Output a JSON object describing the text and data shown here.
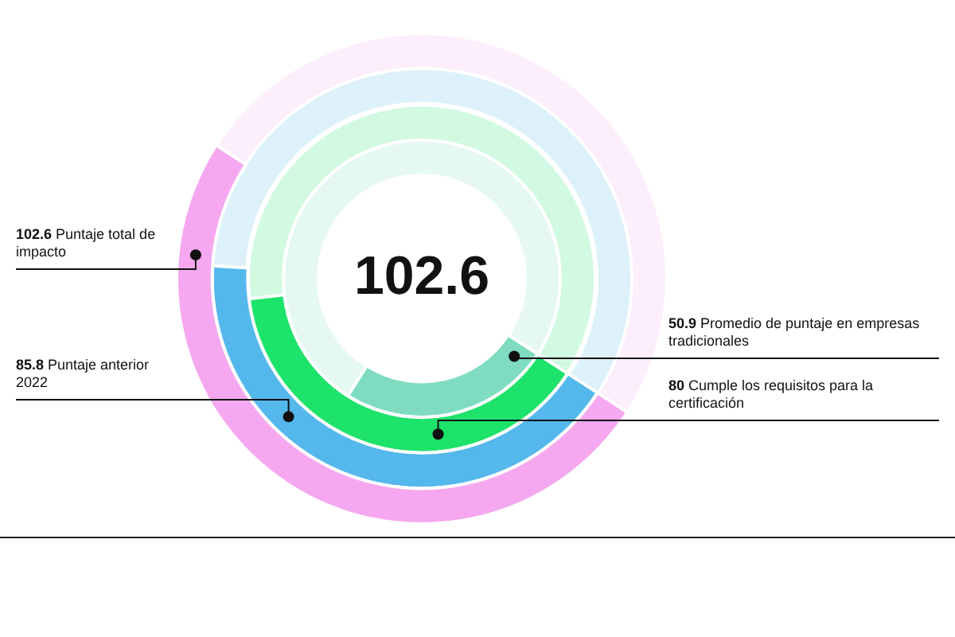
{
  "chart_data": {
    "type": "other",
    "categories": [
      "Puntaje total de impacto",
      "Puntaje anterior 2022",
      "Cumple los requisitos para la certificación",
      "Promedio de puntaje en empresas tradicionales"
    ],
    "values": [
      102.6,
      85.8,
      80,
      50.9
    ],
    "colors": [
      "#f5a8f0",
      "#55b8ec",
      "#1de36a",
      "#7fdcc0"
    ],
    "data_labels": true,
    "legend": false,
    "annotations": [
      "102.6"
    ]
  }
}
